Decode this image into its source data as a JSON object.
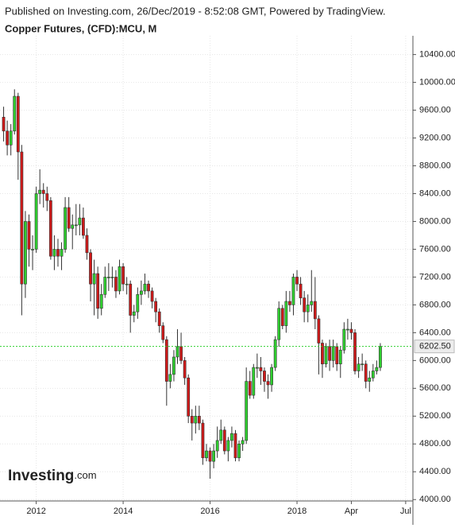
{
  "chart_data": {
    "type": "candlestick",
    "header": "Published on Investing.com, 26/Dec/2019 - 8:52:08 GMT, Powered by TradingView.",
    "title": "Copper Futures, (CFD):MCU, M",
    "logo": "Investing",
    "logo_suffix": ".com",
    "up_color": "#2fcf2f",
    "down_color": "#cf1a1a",
    "x": [
      "2011-04",
      "2011-05",
      "2011-06",
      "2011-07",
      "2011-08",
      "2011-09",
      "2011-10",
      "2011-11",
      "2011-12",
      "2012-01",
      "2012-02",
      "2012-03",
      "2012-04",
      "2012-05",
      "2012-06",
      "2012-07",
      "2012-08",
      "2012-09",
      "2012-10",
      "2012-11",
      "2012-12",
      "2013-01",
      "2013-02",
      "2013-03",
      "2013-04",
      "2013-05",
      "2013-06",
      "2013-07",
      "2013-08",
      "2013-09",
      "2013-10",
      "2013-11",
      "2013-12",
      "2014-01",
      "2014-02",
      "2014-03",
      "2014-04",
      "2014-05",
      "2014-06",
      "2014-07",
      "2014-08",
      "2014-09",
      "2014-10",
      "2014-11",
      "2014-12",
      "2015-01",
      "2015-02",
      "2015-03",
      "2015-04",
      "2015-05",
      "2015-06",
      "2015-07",
      "2015-08",
      "2015-09",
      "2015-10",
      "2015-11",
      "2015-12",
      "2016-01",
      "2016-02",
      "2016-03",
      "2016-04",
      "2016-05",
      "2016-06",
      "2016-07",
      "2016-08",
      "2016-09",
      "2016-10",
      "2016-11",
      "2016-12",
      "2017-01",
      "2017-02",
      "2017-03",
      "2017-04",
      "2017-05",
      "2017-06",
      "2017-07",
      "2017-08",
      "2017-09",
      "2017-10",
      "2017-11",
      "2017-12",
      "2018-01",
      "2018-02",
      "2018-03",
      "2018-04",
      "2018-05",
      "2018-06",
      "2018-07",
      "2018-08",
      "2018-09",
      "2018-10",
      "2018-11",
      "2018-12",
      "2019-01",
      "2019-02",
      "2019-03",
      "2019-04",
      "2019-05",
      "2019-06",
      "2019-07",
      "2019-08",
      "2019-09",
      "2019-10",
      "2019-11",
      "2019-12"
    ],
    "open": [
      9500,
      9300,
      9100,
      9300,
      9800,
      9000,
      7100,
      8000,
      7600,
      7600,
      8400,
      8450,
      8400,
      8300,
      7500,
      7600,
      7500,
      7600,
      8200,
      7900,
      7950,
      7950,
      8050,
      7800,
      7550,
      7100,
      7250,
      6750,
      6950,
      7200,
      7200,
      7200,
      7000,
      7350,
      7100,
      7100,
      6650,
      6700,
      6950,
      7000,
      7100,
      7000,
      6850,
      6700,
      6500,
      6300,
      5700,
      5800,
      6050,
      6200,
      6000,
      5750,
      5200,
      5100,
      5200,
      5100,
      4600,
      4700,
      4550,
      4700,
      4850,
      5000,
      4700,
      4850,
      4950,
      4600,
      4800,
      4850,
      5700,
      5500,
      5900,
      5900,
      5850,
      5700,
      5650,
      5900,
      6300,
      6750,
      6500,
      6850,
      6800,
      7200,
      7100,
      6900,
      6700,
      6800,
      6850,
      6600,
      6250,
      5950,
      6200,
      6000,
      6200,
      5950,
      6150,
      6450,
      6450,
      6400,
      5850,
      5950,
      5950,
      5700,
      5750,
      5850,
      5900
    ],
    "high": [
      9650,
      9450,
      9400,
      9900,
      9850,
      9100,
      8150,
      8100,
      7800,
      8500,
      8750,
      8550,
      8500,
      8350,
      7800,
      7750,
      7700,
      8350,
      8350,
      8100,
      8250,
      8250,
      8200,
      7900,
      7600,
      7450,
      7350,
      7100,
      7350,
      7400,
      7350,
      7300,
      7450,
      7400,
      7200,
      7150,
      6800,
      7050,
      7150,
      7250,
      7150,
      7050,
      6900,
      6750,
      6550,
      6350,
      5950,
      6150,
      6450,
      6400,
      6050,
      5800,
      5300,
      5350,
      5350,
      5150,
      4800,
      4750,
      4800,
      5050,
      5150,
      5050,
      4900,
      5050,
      5000,
      4850,
      4900,
      5900,
      5850,
      5950,
      6100,
      6050,
      5900,
      5800,
      5950,
      6350,
      6850,
      6800,
      7000,
      7000,
      7250,
      7300,
      7200,
      7000,
      6950,
      7300,
      7200,
      6650,
      6300,
      6250,
      6300,
      6300,
      6250,
      6200,
      6550,
      6600,
      6550,
      6450,
      6050,
      6100,
      6000,
      5850,
      5950,
      6000,
      6250
    ],
    "low": [
      9150,
      8950,
      8950,
      9250,
      8600,
      6650,
      6900,
      7350,
      7300,
      7550,
      8250,
      8200,
      8150,
      7450,
      7300,
      7350,
      7300,
      7550,
      7850,
      7600,
      7800,
      7800,
      7750,
      7450,
      6850,
      6650,
      6600,
      6650,
      6900,
      7000,
      7050,
      6900,
      6950,
      7000,
      6950,
      6400,
      6550,
      6600,
      6800,
      6950,
      6900,
      6750,
      6550,
      6400,
      6250,
      5350,
      5600,
      5700,
      5950,
      5950,
      5650,
      5100,
      4850,
      4950,
      5000,
      4500,
      4550,
      4300,
      4450,
      4600,
      4800,
      4650,
      4550,
      4750,
      4550,
      4550,
      4700,
      4800,
      5450,
      5450,
      5750,
      5650,
      5550,
      5450,
      5550,
      5850,
      6200,
      6450,
      6400,
      6700,
      6650,
      7000,
      6800,
      6550,
      6550,
      6700,
      6450,
      5800,
      5750,
      5900,
      5850,
      5900,
      5850,
      5750,
      6100,
      6300,
      6300,
      5800,
      5750,
      5850,
      5600,
      5550,
      5700,
      5800,
      5850
    ],
    "close": [
      9300,
      9100,
      9300,
      9800,
      9000,
      7100,
      8000,
      7600,
      7600,
      8400,
      8450,
      8400,
      8300,
      7500,
      7600,
      7500,
      7600,
      8200,
      7900,
      7950,
      7950,
      8050,
      7800,
      7550,
      7100,
      7250,
      6750,
      6950,
      7200,
      7200,
      7200,
      7000,
      7350,
      7100,
      7100,
      6650,
      6700,
      6950,
      7000,
      7100,
      7000,
      6850,
      6700,
      6500,
      6300,
      5700,
      5800,
      6050,
      6200,
      6000,
      5750,
      5200,
      5100,
      5200,
      5100,
      4600,
      4700,
      4550,
      4700,
      4850,
      5000,
      4700,
      4850,
      4950,
      4600,
      4800,
      4850,
      5700,
      5500,
      5900,
      5900,
      5850,
      5700,
      5650,
      5900,
      6300,
      6750,
      6500,
      6850,
      6800,
      7200,
      7100,
      6900,
      6700,
      6800,
      6850,
      6600,
      6250,
      5950,
      6200,
      6000,
      6200,
      5950,
      6150,
      6450,
      6450,
      6400,
      5850,
      5950,
      5950,
      5700,
      5750,
      5850,
      5900,
      6202.5
    ],
    "last_price": {
      "value": 6202.5,
      "label": "6202.50"
    },
    "xlim": [
      "2011-03",
      "2020-09"
    ],
    "xticks": [
      {
        "value": "2012-01",
        "label": "2012"
      },
      {
        "value": "2014-01",
        "label": "2014"
      },
      {
        "value": "2016-01",
        "label": "2016"
      },
      {
        "value": "2018-01",
        "label": "2018"
      },
      {
        "value": "2019-04",
        "label": "Apr"
      },
      {
        "value": "2020-07",
        "label": "Jul"
      }
    ],
    "ylim": [
      3980,
      10670
    ],
    "yticks": [
      {
        "value": 4000,
        "label": "4000.00"
      },
      {
        "value": 4400,
        "label": "4400.00"
      },
      {
        "value": 4800,
        "label": "4800.00"
      },
      {
        "value": 5200,
        "label": "5200.00"
      },
      {
        "value": 5600,
        "label": "5600.00"
      },
      {
        "value": 6000,
        "label": "6000.00"
      },
      {
        "value": 6400,
        "label": "6400.00"
      },
      {
        "value": 6800,
        "label": "6800.00"
      },
      {
        "value": 7200,
        "label": "7200.00"
      },
      {
        "value": 7600,
        "label": "7600.00"
      },
      {
        "value": 8000,
        "label": "8000.00"
      },
      {
        "value": 8400,
        "label": "8400.00"
      },
      {
        "value": 8800,
        "label": "8800.00"
      },
      {
        "value": 9200,
        "label": "9200.00"
      },
      {
        "value": 9600,
        "label": "9600.00"
      },
      {
        "value": 10000,
        "label": "10000.00"
      },
      {
        "value": 10400,
        "label": "10400.00"
      }
    ],
    "grid": true
  }
}
